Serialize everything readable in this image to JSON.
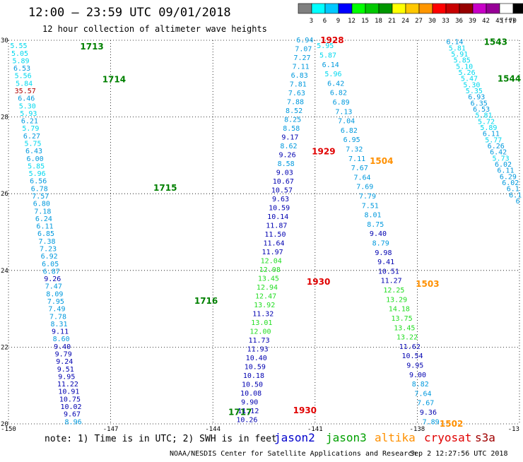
{
  "header": {
    "title": "12:00 – 23:59 UTC 09/01/2018",
    "subtitle": "12 hour collection of altimeter wave heights"
  },
  "colorbar": {
    "unit": "(ft)",
    "bins": [
      {
        "color": "#808080",
        "label": "3"
      },
      {
        "color": "#00ffff",
        "label": "6"
      },
      {
        "color": "#00c8ff",
        "label": "9"
      },
      {
        "color": "#0000ff",
        "label": "12"
      },
      {
        "color": "#00ff00",
        "label": "15"
      },
      {
        "color": "#00c800",
        "label": "18"
      },
      {
        "color": "#009600",
        "label": "21"
      },
      {
        "color": "#ffff00",
        "label": "24"
      },
      {
        "color": "#ffc800",
        "label": "27"
      },
      {
        "color": "#ff9600",
        "label": "30"
      },
      {
        "color": "#ff0000",
        "label": "33"
      },
      {
        "color": "#c80000",
        "label": "36"
      },
      {
        "color": "#960000",
        "label": "39"
      },
      {
        "color": "#c800c8",
        "label": "42"
      },
      {
        "color": "#960096",
        "label": "45"
      },
      {
        "color": "#ffffff",
        "label": "70"
      },
      {
        "color": "#000000",
        "label": ""
      }
    ]
  },
  "axes": {
    "lon_min": -150,
    "lon_max": -135,
    "lat_min": 20,
    "lat_max": 30,
    "y_ticks": [
      "30",
      "28",
      "26",
      "24",
      "22",
      "20"
    ],
    "x_ticks": [
      "-150",
      "-147",
      "-144",
      "-141",
      "-138",
      "-13"
    ]
  },
  "satellites": [
    {
      "key": "jason2",
      "label": "jason2",
      "color": "#0000cc"
    },
    {
      "key": "jason3",
      "label": "jason3",
      "color": "#00a000"
    },
    {
      "key": "altika",
      "label": "altika",
      "color": "#ff9000"
    },
    {
      "key": "cryosat",
      "label": "cryosat",
      "color": "#e00000"
    },
    {
      "key": "s3a",
      "label": "s3a",
      "color": "#a00000"
    }
  ],
  "footer": {
    "note": "note:  1) Time is in UTC;  2) SWH is in feet",
    "credit": "NOAA/NESDIS Center for Satellite Applications and Research",
    "timestamp": "Sep  2 12:27:56 UTC 2018"
  },
  "chart_data": {
    "type": "scatter",
    "title": "12:00 – 23:59 UTC 09/01/2018",
    "subtitle": "12 hour collection of altimeter wave heights",
    "xlim": [
      -150,
      -135
    ],
    "ylim": [
      20,
      30
    ],
    "unit": "ft",
    "tracks": [
      {
        "name": "track-1",
        "lon": [
          -149.7,
          -148.1
        ],
        "lat": [
          29.85,
          20.05
        ],
        "values": [
          "5.55",
          "5.05",
          "5.89",
          "6.53",
          "5.56",
          "5.84",
          "35.57",
          "6.46",
          "5.30",
          "5.93",
          "6.21",
          "5.79",
          "6.27",
          "5.75",
          "6.43",
          "6.00",
          "5.85",
          "5.96",
          "6.56",
          "6.78",
          "7.57",
          "6.80",
          "7.18",
          "6.24",
          "6.11",
          "6.85",
          "7.38",
          "7.23",
          "6.92",
          "6.05",
          "6.87",
          "9.26",
          "7.47",
          "8.09",
          "7.95",
          "7.49",
          "7.78",
          "8.31",
          "9.11",
          "8.60",
          "9.40",
          "9.79",
          "9.24",
          "9.51",
          "9.95",
          "11.22",
          "10.91",
          "10.75",
          "10.02",
          "9.67",
          "8.96"
        ],
        "pass_labels": [
          {
            "text": "1713",
            "lon": -147.55,
            "lat": 29.83
          },
          {
            "text": "1714",
            "lon": -146.9,
            "lat": 28.98
          },
          {
            "text": "1715",
            "lon": -145.4,
            "lat": 26.15
          },
          {
            "text": "1716",
            "lon": -144.2,
            "lat": 23.2
          },
          {
            "text": "1717",
            "lon": -143.2,
            "lat": 20.3
          }
        ]
      },
      {
        "name": "track-2",
        "lon": [
          -141.3,
          -143.0
        ],
        "lat": [
          30.0,
          20.1
        ],
        "values": [
          "6.94",
          "7.07",
          "7.27",
          "7.11",
          "6.83",
          "7.81",
          "7.63",
          "7.88",
          "8.52",
          "8.25",
          "8.58",
          "9.17",
          "8.62",
          "9.26",
          "8.58",
          "9.03",
          "10.67",
          "10.57",
          "9.63",
          "10.59",
          "10.14",
          "11.87",
          "11.50",
          "11.64",
          "11.97",
          "12.04",
          "12.08",
          "13.45",
          "12.94",
          "12.47",
          "13.92",
          "11.32",
          "13.01",
          "12.00",
          "11.73",
          "11.93",
          "10.40",
          "10.59",
          "10.18",
          "10.50",
          "10.08",
          "9.90",
          "11.12",
          "10.26"
        ],
        "pass_labels": [
          {
            "text": "1928",
            "lon": -140.5,
            "lat": 30.0
          },
          {
            "text": "1929",
            "lon": -140.75,
            "lat": 27.1
          },
          {
            "text": "1930",
            "lon": -140.9,
            "lat": 23.7
          },
          {
            "text": "1930",
            "lon": -141.3,
            "lat": 20.35
          }
        ]
      },
      {
        "name": "track-3",
        "lon": [
          -140.7,
          -137.6
        ],
        "lat": [
          29.85,
          20.05
        ],
        "values": [
          "5.95",
          "5.87",
          "6.14",
          "5.96",
          "6.42",
          "6.82",
          "6.89",
          "7.13",
          "7.04",
          "6.82",
          "6.95",
          "7.32",
          "7.11",
          "7.67",
          "7.64",
          "7.69",
          "7.79",
          "7.51",
          "8.01",
          "8.75",
          "9.40",
          "8.79",
          "9.98",
          "9.41",
          "10.51",
          "11.27",
          "12.25",
          "13.29",
          "14.18",
          "13.75",
          "13.45",
          "13.22",
          "11.62",
          "10.54",
          "9.95",
          "9.00",
          "8.82",
          "7.64",
          "7.67",
          "9.36",
          "7.89"
        ],
        "pass_labels": [
          {
            "text": "1504",
            "lon": -139.05,
            "lat": 26.85
          },
          {
            "text": "1503",
            "lon": -137.7,
            "lat": 23.65
          },
          {
            "text": "1502",
            "lon": -137.0,
            "lat": 20.0
          }
        ]
      },
      {
        "name": "track-4",
        "lon": [
          -136.9,
          -135.05
        ],
        "lat": [
          29.95,
          25.8
        ],
        "values": [
          "6.14",
          "5.81",
          "5.91",
          "5.85",
          "5.10",
          "5.26",
          "5.47",
          "5.30",
          "5.35",
          "6.93",
          "6.35",
          "6.53",
          "5.81",
          "5.72",
          "5.89",
          "6.11",
          "5.77",
          "6.26",
          "6.42",
          "5.73",
          "6.02",
          "6.11",
          "6.29",
          "6.02",
          "6.1",
          "6.1",
          "6"
        ],
        "pass_labels": [
          {
            "text": "1543",
            "lon": -135.7,
            "lat": 29.95
          },
          {
            "text": "1544",
            "lon": -135.3,
            "lat": 29.0
          }
        ]
      }
    ]
  }
}
